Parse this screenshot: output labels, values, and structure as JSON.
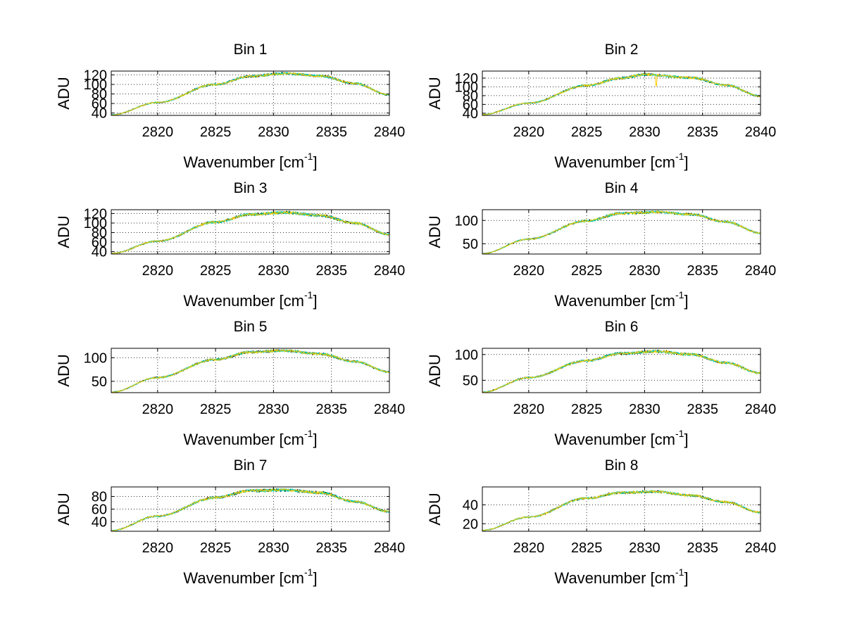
{
  "chart_data": {
    "type": "line",
    "layout": "4x2 grid of subplots",
    "colors": {
      "black": "#000000",
      "green": "#00c060",
      "cyan": "#00cccc",
      "yellow": "#ffcc00",
      "grid": "#333333"
    },
    "xlabel_text": "Wavenumber [cm",
    "xlabel_sup": "-1",
    "xlabel_close": "]",
    "xlim": [
      2816,
      2840
    ],
    "xticks": [
      2820,
      2825,
      2830,
      2835,
      2840
    ],
    "x_tick_labels": [
      "2820",
      "2825",
      "2830",
      "2835",
      "2840"
    ],
    "series_names": [
      "black",
      "green",
      "cyan",
      "yellow"
    ],
    "subplots": [
      {
        "title": "Bin 1",
        "ylabel": "ADU",
        "ylim": [
          35,
          128
        ],
        "yticks": [
          40,
          60,
          80,
          100,
          120
        ],
        "ytick_labels": [
          "40",
          "60",
          "80",
          "100",
          "120"
        ],
        "x": [
          2816,
          2820,
          2825,
          2828,
          2831,
          2834,
          2837,
          2840
        ],
        "values": [
          36,
          62,
          100,
          117,
          123,
          118,
          102,
          78
        ],
        "noise": 2.5,
        "seed": 11,
        "spike": null
      },
      {
        "title": "Bin 2",
        "ylabel": "ADU",
        "ylim": [
          35,
          136
        ],
        "yticks": [
          40,
          60,
          80,
          100,
          120
        ],
        "ytick_labels": [
          "40",
          "60",
          "80",
          "100",
          "120"
        ],
        "x": [
          2816,
          2820,
          2825,
          2828,
          2830,
          2834,
          2837,
          2840
        ],
        "values": [
          37,
          63,
          103,
          120,
          128,
          121,
          104,
          79
        ],
        "noise": 2.8,
        "seed": 23,
        "spike": [
          2831,
          102
        ]
      },
      {
        "title": "Bin 3",
        "ylabel": "ADU",
        "ylim": [
          35,
          128
        ],
        "yticks": [
          40,
          60,
          80,
          100,
          120
        ],
        "ytick_labels": [
          "40",
          "60",
          "80",
          "100",
          "120"
        ],
        "x": [
          2816,
          2820,
          2825,
          2828,
          2831,
          2834,
          2837,
          2840
        ],
        "values": [
          36,
          62,
          102,
          118,
          122,
          116,
          100,
          76
        ],
        "noise": 2.8,
        "seed": 37,
        "spike": null
      },
      {
        "title": "Bin 4",
        "ylabel": "ADU",
        "ylim": [
          28,
          123
        ],
        "yticks": [
          50,
          100
        ],
        "ytick_labels": [
          "50",
          "100"
        ],
        "x": [
          2816,
          2820,
          2825,
          2828,
          2831,
          2834,
          2837,
          2840
        ],
        "values": [
          29,
          60,
          99,
          115,
          118,
          113,
          97,
          73
        ],
        "noise": 2.6,
        "seed": 41,
        "spike": null
      },
      {
        "title": "Bin 5",
        "ylabel": "ADU",
        "ylim": [
          26,
          120
        ],
        "yticks": [
          50,
          100
        ],
        "ytick_labels": [
          "50",
          "100"
        ],
        "x": [
          2816,
          2820,
          2825,
          2828,
          2831,
          2834,
          2837,
          2840
        ],
        "values": [
          27,
          58,
          96,
          112,
          115,
          108,
          92,
          70
        ],
        "noise": 2.6,
        "seed": 53,
        "spike": null
      },
      {
        "title": "Bin 6",
        "ylabel": "ADU",
        "ylim": [
          26,
          112
        ],
        "yticks": [
          50,
          100
        ],
        "ytick_labels": [
          "50",
          "100"
        ],
        "x": [
          2816,
          2820,
          2825,
          2828,
          2831,
          2834,
          2837,
          2840
        ],
        "values": [
          27,
          55,
          88,
          102,
          106,
          100,
          84,
          64
        ],
        "noise": 2.6,
        "seed": 67,
        "spike": null
      },
      {
        "title": "Bin 7",
        "ylabel": "ADU",
        "ylim": [
          25,
          95
        ],
        "yticks": [
          40,
          60,
          80
        ],
        "ytick_labels": [
          "40",
          "60",
          "80"
        ],
        "x": [
          2816,
          2820,
          2825,
          2828,
          2831,
          2834,
          2837,
          2840
        ],
        "values": [
          26,
          49,
          78,
          89,
          90,
          86,
          72,
          56
        ],
        "noise": 2.2,
        "seed": 79,
        "spike": null
      },
      {
        "title": "Bin 8",
        "ylabel": "ADU",
        "ylim": [
          12,
          59
        ],
        "yticks": [
          20,
          40
        ],
        "ytick_labels": [
          "20",
          "40"
        ],
        "x": [
          2816,
          2820,
          2825,
          2828,
          2831,
          2834,
          2837,
          2840
        ],
        "values": [
          13,
          27,
          47,
          53,
          54,
          50,
          43,
          32
        ],
        "noise": 1.3,
        "seed": 97,
        "spike": null
      }
    ]
  }
}
